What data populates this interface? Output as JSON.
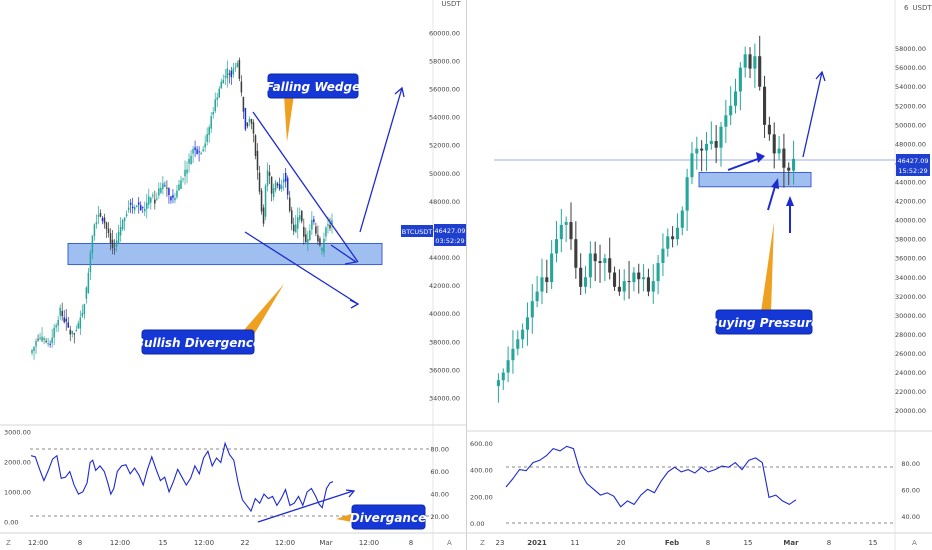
{
  "chart_data": [
    {
      "type": "candlestick",
      "symbol": "BTCUSDT",
      "price_axis": {
        "currency": "USDT",
        "ticks": [
          "60000.00",
          "58000.00",
          "56000.00",
          "54000.00",
          "52000.00",
          "50000.00",
          "48000.00",
          "46000.00",
          "44000.00",
          "42000.00",
          "40000.00",
          "38000.00",
          "36000.00",
          "34000.00"
        ],
        "ylim": [
          33000,
          61200
        ]
      },
      "time_axis": {
        "ticks": [
          "12:00",
          "8",
          "12:00",
          "15",
          "12:00",
          "22",
          "12:00",
          "Mar",
          "12:00",
          "8"
        ]
      },
      "last_price": "46427.09",
      "countdown": "03:52:29",
      "price_path": [
        [
          0.0,
          37200
        ],
        [
          0.8,
          37500
        ],
        [
          1.5,
          38200
        ],
        [
          2.1,
          38500
        ],
        [
          2.6,
          38000
        ],
        [
          3.0,
          38300
        ],
        [
          3.5,
          37800
        ],
        [
          4.1,
          38100
        ],
        [
          4.8,
          37600
        ],
        [
          5.2,
          38600
        ],
        [
          6.0,
          39300
        ],
        [
          7.0,
          40200
        ],
        [
          7.8,
          39600
        ],
        [
          8.5,
          39200
        ],
        [
          9.2,
          38700
        ],
        [
          10.0,
          38500
        ],
        [
          11.0,
          38900
        ],
        [
          12.0,
          40000
        ],
        [
          13.0,
          41500
        ],
        [
          13.7,
          43500
        ],
        [
          14.3,
          45500
        ],
        [
          15.0,
          46500
        ],
        [
          16.0,
          47200
        ],
        [
          17.0,
          46700
        ],
        [
          17.8,
          46000
        ],
        [
          18.5,
          45200
        ],
        [
          19.2,
          44600
        ],
        [
          20.0,
          45000
        ],
        [
          21.0,
          46200
        ],
        [
          22.0,
          47000
        ],
        [
          23.0,
          47800
        ],
        [
          24.0,
          47500
        ],
        [
          25.0,
          47900
        ],
        [
          26.0,
          47300
        ],
        [
          27.0,
          47800
        ],
        [
          28.0,
          48400
        ],
        [
          29.0,
          48000
        ],
        [
          30.0,
          48800
        ],
        [
          31.0,
          49200
        ],
        [
          32.0,
          48600
        ],
        [
          33.0,
          48000
        ],
        [
          34.0,
          48700
        ],
        [
          35.0,
          49500
        ],
        [
          36.0,
          50200
        ],
        [
          37.0,
          51000
        ],
        [
          38.0,
          52000
        ],
        [
          39.0,
          51400
        ],
        [
          40.0,
          51800
        ],
        [
          41.0,
          52500
        ],
        [
          42.0,
          54000
        ],
        [
          43.0,
          55200
        ],
        [
          44.0,
          56200
        ],
        [
          45.0,
          56800
        ],
        [
          46.0,
          57400
        ],
        [
          46.5,
          56700
        ],
        [
          47.2,
          57500
        ],
        [
          48.0,
          58000
        ],
        [
          48.6,
          56500
        ],
        [
          49.3,
          55000
        ],
        [
          50.0,
          53200
        ],
        [
          51.0,
          54200
        ],
        [
          52.0,
          52200
        ],
        [
          52.8,
          50000
        ],
        [
          53.5,
          48000
        ],
        [
          54.0,
          46000
        ],
        [
          54.6,
          49000
        ],
        [
          55.2,
          50500
        ],
        [
          56.0,
          48500
        ],
        [
          57.0,
          49500
        ],
        [
          58.0,
          49000
        ],
        [
          59.0,
          50000
        ],
        [
          59.6,
          48800
        ],
        [
          60.3,
          47000
        ],
        [
          61.0,
          45500
        ],
        [
          61.8,
          46500
        ],
        [
          62.5,
          47300
        ],
        [
          63.2,
          46000
        ],
        [
          64.0,
          45000
        ],
        [
          64.8,
          46000
        ],
        [
          65.4,
          46800
        ],
        [
          66.0,
          46200
        ],
        [
          66.8,
          45200
        ],
        [
          67.5,
          44300
        ],
        [
          68.0,
          45000
        ],
        [
          68.6,
          46300
        ],
        [
          69.2,
          46200
        ],
        [
          70.0,
          46427
        ]
      ],
      "zones": [
        {
          "kind": "support",
          "price_low": 43500,
          "price_high": 45000
        }
      ],
      "annotations": [
        "Falling Wedge",
        "Bullish Divergence"
      ],
      "indicator": {
        "left_axis_ticks": [
          "3000.00",
          "2000.00",
          "1000.00",
          "0.00"
        ],
        "right_axis_ticks": [
          "80.00",
          "60.00",
          "40.00",
          "20.00"
        ],
        "upper_level": 80,
        "lower_level": 20,
        "path": [
          [
            0.0,
            74
          ],
          [
            1.0,
            73
          ],
          [
            2.0,
            62
          ],
          [
            3.0,
            52
          ],
          [
            4.0,
            61
          ],
          [
            5.0,
            71
          ],
          [
            6.0,
            74
          ],
          [
            7.0,
            54
          ],
          [
            8.0,
            55
          ],
          [
            9.0,
            60
          ],
          [
            10.0,
            48
          ],
          [
            11.0,
            40
          ],
          [
            12.0,
            42
          ],
          [
            13.0,
            50
          ],
          [
            13.7,
            68
          ],
          [
            14.3,
            70
          ],
          [
            15.0,
            61
          ],
          [
            16.0,
            65
          ],
          [
            17.0,
            60
          ],
          [
            17.8,
            50
          ],
          [
            18.5,
            40
          ],
          [
            19.2,
            45
          ],
          [
            20.0,
            60
          ],
          [
            21.0,
            65
          ],
          [
            22.0,
            66
          ],
          [
            23.0,
            58
          ],
          [
            24.0,
            63
          ],
          [
            25.0,
            57
          ],
          [
            26.0,
            48
          ],
          [
            27.0,
            62
          ],
          [
            28.0,
            73
          ],
          [
            29.0,
            62
          ],
          [
            30.0,
            52
          ],
          [
            31.0,
            55
          ],
          [
            32.0,
            42
          ],
          [
            33.0,
            51
          ],
          [
            34.0,
            62
          ],
          [
            35.0,
            55
          ],
          [
            36.0,
            48
          ],
          [
            37.0,
            54
          ],
          [
            38.0,
            65
          ],
          [
            39.0,
            58
          ],
          [
            40.0,
            72
          ],
          [
            41.0,
            78
          ],
          [
            42.0,
            65
          ],
          [
            43.0,
            72
          ],
          [
            44.0,
            68
          ],
          [
            45.0,
            85
          ],
          [
            46.0,
            75
          ],
          [
            47.0,
            70
          ],
          [
            48.0,
            50
          ],
          [
            49.0,
            35
          ],
          [
            50.0,
            30
          ],
          [
            51.0,
            25
          ],
          [
            52.0,
            36
          ],
          [
            53.0,
            32
          ],
          [
            54.0,
            40
          ],
          [
            55.0,
            36
          ],
          [
            56.0,
            38
          ],
          [
            57.0,
            30
          ],
          [
            58.0,
            36
          ],
          [
            59.0,
            44
          ],
          [
            60.0,
            30
          ],
          [
            61.0,
            32
          ],
          [
            62.0,
            38
          ],
          [
            63.0,
            30
          ],
          [
            64.0,
            42
          ],
          [
            65.0,
            45
          ],
          [
            66.0,
            38
          ],
          [
            66.8,
            31
          ],
          [
            67.5,
            28
          ],
          [
            68.5,
            45
          ],
          [
            69.3,
            50
          ],
          [
            70.0,
            51
          ]
        ]
      }
    },
    {
      "type": "candlestick",
      "symbol": "BTCUSDT",
      "price_axis": {
        "currency": "USDT",
        "ticks": [
          "58000.00",
          "56000.00",
          "54000.00",
          "52000.00",
          "50000.00",
          "48000.00",
          "46000.00",
          "44000.00",
          "42000.00",
          "40000.00",
          "38000.00",
          "36000.00",
          "34000.00",
          "32000.00",
          "30000.00",
          "28000.00",
          "26000.00",
          "24000.00",
          "22000.00",
          "20000.00"
        ],
        "ylim": [
          18500,
          61000
        ]
      },
      "time_axis": {
        "ticks": [
          "23",
          "2021",
          "11",
          "20",
          "Feb",
          "8",
          "15",
          "Mar",
          "8",
          "15"
        ]
      },
      "last_price": "46427.09",
      "countdown": "15:52:29",
      "axis_header": "6",
      "price_path": [
        [
          0,
          23200
        ],
        [
          1,
          24000
        ],
        [
          2,
          25300
        ],
        [
          3,
          26500
        ],
        [
          4,
          27500
        ],
        [
          5,
          28500
        ],
        [
          6,
          29800
        ],
        [
          7,
          31500
        ],
        [
          8,
          32500
        ],
        [
          9,
          34000
        ],
        [
          10,
          33500
        ],
        [
          11,
          36500
        ],
        [
          12,
          38000
        ],
        [
          13,
          39500
        ],
        [
          14,
          39800
        ],
        [
          15,
          38000
        ],
        [
          16,
          35000
        ],
        [
          17,
          33000
        ],
        [
          18,
          34000
        ],
        [
          19,
          36500
        ],
        [
          20,
          35700
        ],
        [
          21,
          35500
        ],
        [
          22,
          36000
        ],
        [
          23,
          34500
        ],
        [
          24,
          33000
        ],
        [
          25,
          32500
        ],
        [
          26,
          33600
        ],
        [
          27,
          33500
        ],
        [
          28,
          34500
        ],
        [
          29,
          33800
        ],
        [
          30,
          34000
        ],
        [
          31,
          32500
        ],
        [
          32,
          33600
        ],
        [
          33,
          35500
        ],
        [
          34,
          37000
        ],
        [
          35,
          38300
        ],
        [
          36,
          38000
        ],
        [
          37,
          39200
        ],
        [
          38,
          41000
        ],
        [
          39,
          44500
        ],
        [
          40,
          47000
        ],
        [
          41,
          47500
        ],
        [
          42,
          47300
        ],
        [
          43,
          48000
        ],
        [
          44,
          48300
        ],
        [
          45,
          47600
        ],
        [
          46,
          49800
        ],
        [
          47,
          51000
        ],
        [
          48,
          52000
        ],
        [
          49,
          53500
        ],
        [
          50,
          56000
        ],
        [
          51,
          57400
        ],
        [
          52,
          55900
        ],
        [
          53,
          57200
        ],
        [
          54,
          54000
        ],
        [
          55,
          50000
        ],
        [
          56,
          49000
        ],
        [
          57,
          47000
        ],
        [
          58,
          47500
        ],
        [
          59,
          45500
        ],
        [
          60,
          45200
        ],
        [
          61,
          46427
        ]
      ],
      "zones": [
        {
          "kind": "support",
          "price_low": 43500,
          "price_high": 45000
        }
      ],
      "annotations": [
        "Buying Pressure"
      ],
      "indicator": {
        "left_axis_ticks": [
          "600.00",
          "400.00",
          "200.00",
          "0.00"
        ],
        "right_axis_ticks": [
          "80.00",
          "60.00",
          "40.00"
        ],
        "reference_levels": [
          70,
          30
        ],
        "path": [
          [
            0,
            57
          ],
          [
            2,
            64
          ],
          [
            4,
            72
          ],
          [
            6,
            71
          ],
          [
            8,
            78
          ],
          [
            10,
            80
          ],
          [
            12,
            84
          ],
          [
            14,
            90
          ],
          [
            16,
            88
          ],
          [
            18,
            92
          ],
          [
            20,
            90
          ],
          [
            22,
            70
          ],
          [
            24,
            60
          ],
          [
            26,
            55
          ],
          [
            28,
            50
          ],
          [
            30,
            52
          ],
          [
            32,
            49
          ],
          [
            34,
            40
          ],
          [
            36,
            45
          ],
          [
            38,
            42
          ],
          [
            40,
            50
          ],
          [
            42,
            55
          ],
          [
            44,
            52
          ],
          [
            46,
            62
          ],
          [
            48,
            70
          ],
          [
            50,
            74
          ],
          [
            52,
            70
          ],
          [
            54,
            72
          ],
          [
            56,
            69
          ],
          [
            58,
            74
          ],
          [
            60,
            70
          ],
          [
            62,
            72
          ],
          [
            64,
            75
          ],
          [
            66,
            74
          ],
          [
            68,
            78
          ],
          [
            70,
            72
          ],
          [
            72,
            80
          ],
          [
            74,
            82
          ],
          [
            76,
            78
          ],
          [
            78,
            48
          ],
          [
            80,
            50
          ],
          [
            82,
            45
          ],
          [
            84,
            42
          ],
          [
            86,
            46
          ]
        ]
      }
    }
  ],
  "left_panel": {
    "axis_ticks": [
      "60000.00",
      "58000.00",
      "56000.00",
      "54000.00",
      "52000.00",
      "50000.00",
      "48000.00",
      "46000.00",
      "44000.00",
      "42000.00",
      "40000.00",
      "38000.00",
      "36000.00",
      "34000.00"
    ],
    "axis_currency": "USDT",
    "price_tag_symbol": "BTCUSDT",
    "price_tag_value": "46427.09",
    "price_tag_countdown": "03:52:29",
    "label_falling_wedge": "Falling Wedge",
    "label_bullish_divergence": "Bullish Divergence",
    "label_divergance": "Divergance",
    "time_labels": [
      "12:00",
      "8",
      "12:00",
      "15",
      "12:00",
      "22",
      "12:00",
      "Mar",
      "12:00",
      "8"
    ],
    "osc_left_ticks": [
      "3000.00",
      "2000.00",
      "1000.00",
      "0.00"
    ],
    "osc_right_ticks": [
      "80.00",
      "60.00",
      "40.00",
      "20.00"
    ],
    "corner_z": "Z",
    "corner_a": "A"
  },
  "right_panel": {
    "axis_ticks": [
      "58000.00",
      "56000.00",
      "54000.00",
      "52000.00",
      "50000.00",
      "48000.00",
      "46000.00",
      "44000.00",
      "42000.00",
      "40000.00",
      "38000.00",
      "36000.00",
      "34000.00",
      "32000.00",
      "30000.00",
      "28000.00",
      "26000.00",
      "24000.00",
      "22000.00",
      "20000.00"
    ],
    "axis_header_num": "6",
    "axis_currency": "USDT",
    "price_tag_value": "46427.09",
    "price_tag_countdown": "15:52:29",
    "label_buying_pressure": "Buying Pressure",
    "time_labels": [
      "23",
      "2021",
      "11",
      "20",
      "Feb",
      "8",
      "15",
      "Mar",
      "8",
      "15"
    ],
    "osc_left_ticks": [
      "600.00",
      "400.00",
      "200.00",
      "0.00"
    ],
    "osc_right_ticks": [
      "80.00",
      "60.00",
      "40.00"
    ],
    "corner_z": "Z",
    "corner_a": "A"
  },
  "colors": {
    "bull": "#26a69a",
    "bear": "#3d3d3d",
    "candle_blue": "#1a2ee0",
    "zone_fill": "#8fb4ef",
    "zone_stroke": "#3d5fd6",
    "annotation_bg": "#1437d6",
    "annotation_orange": "#f0a020",
    "indicator_line": "#1d2ad0",
    "price_tag_bg": "#1f3fcf"
  }
}
